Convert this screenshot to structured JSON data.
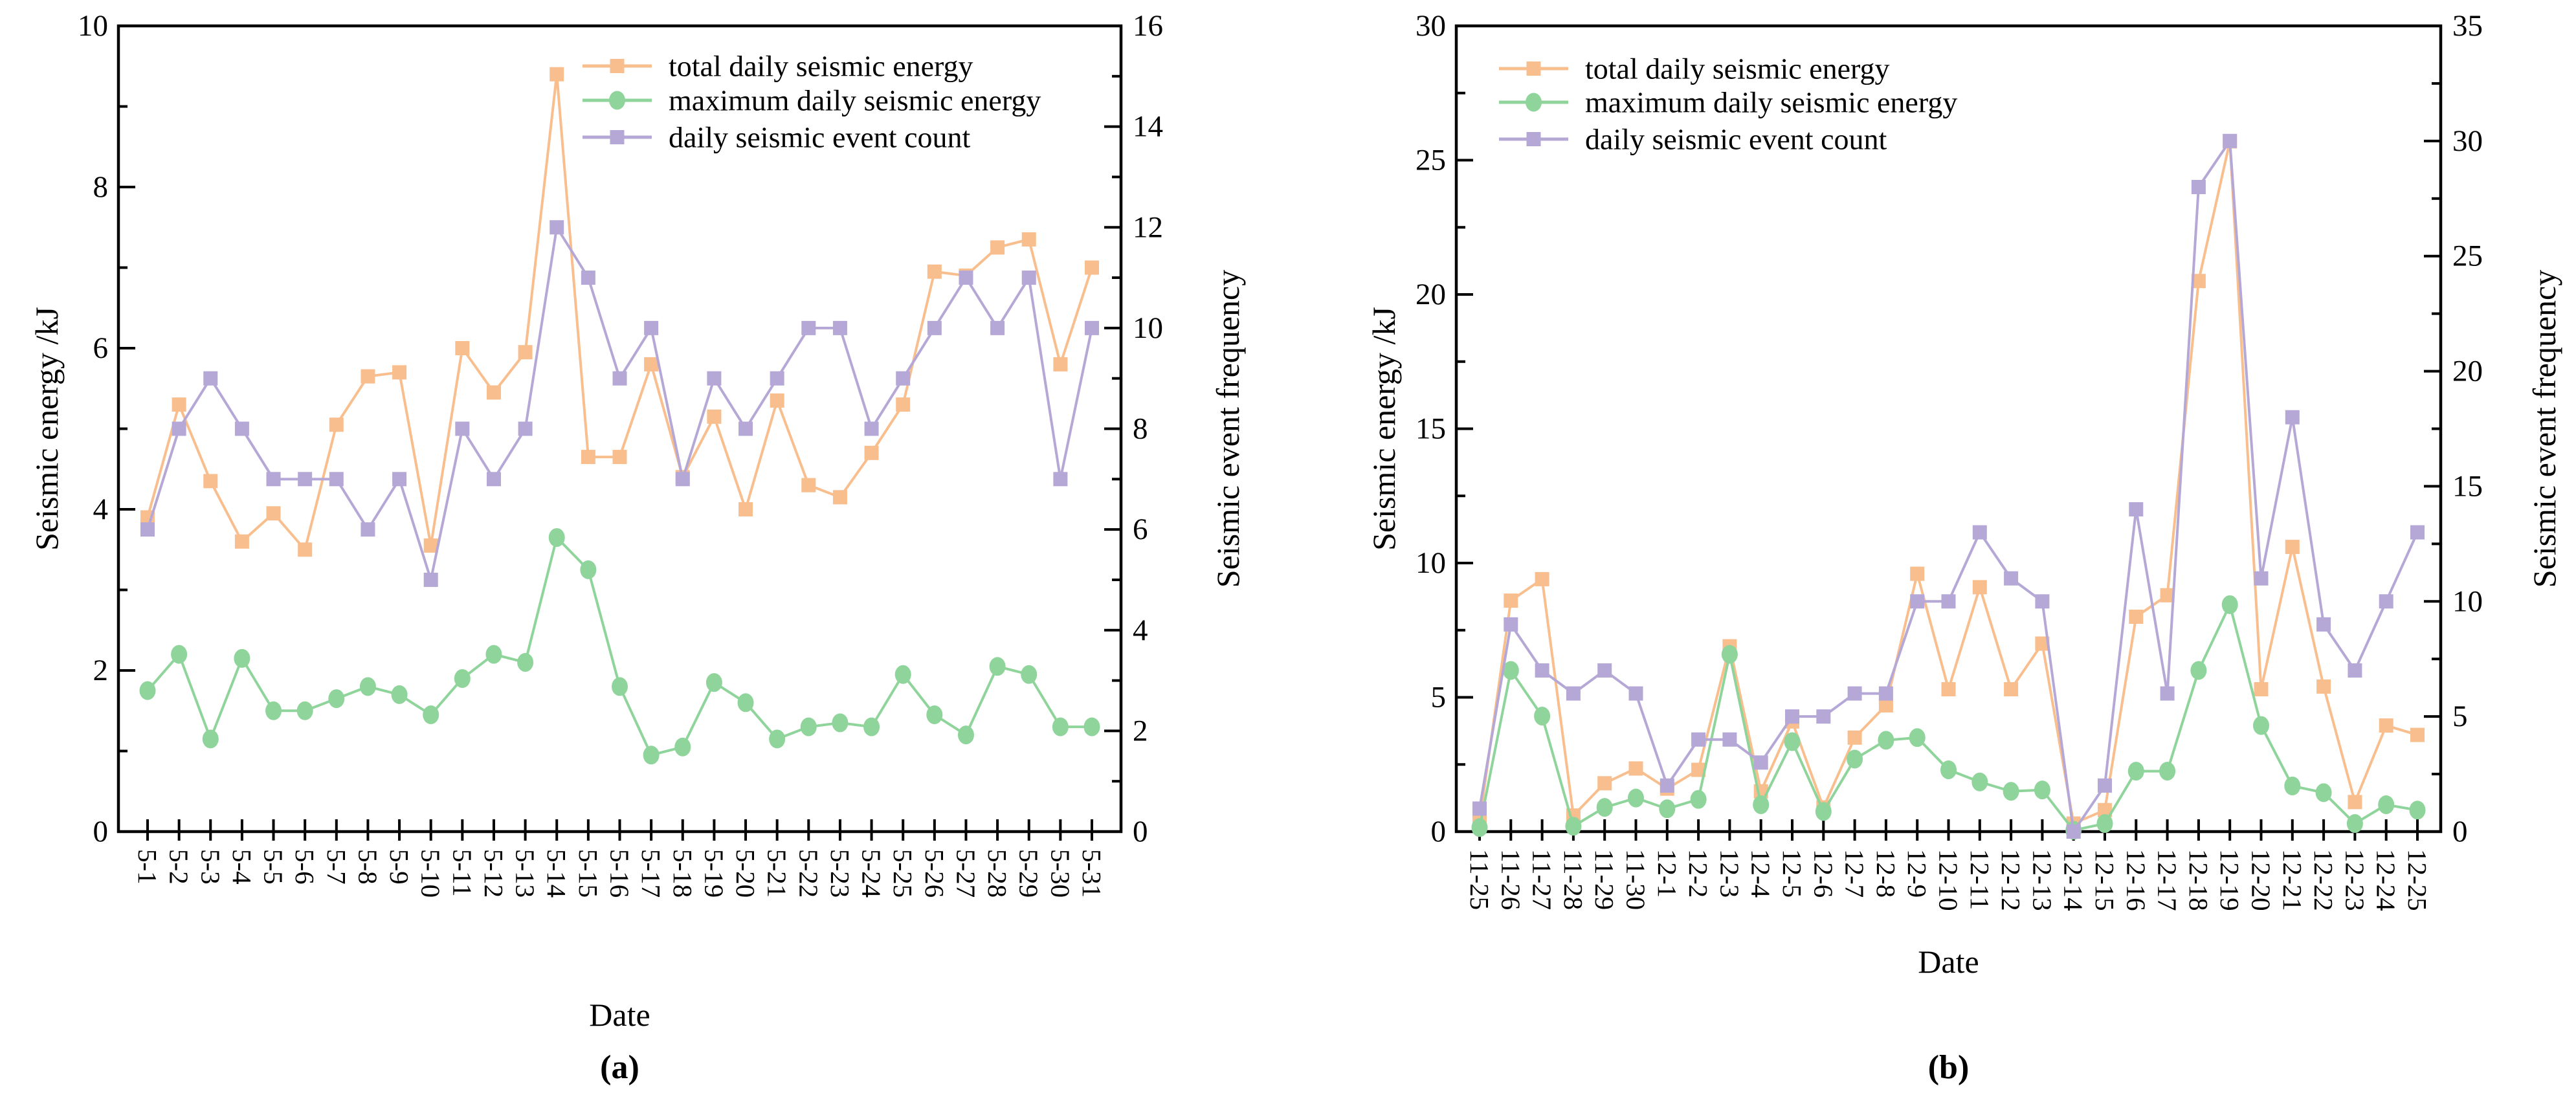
{
  "colors": {
    "total_daily_seismic_energy": "#F9BE8D",
    "maximum_daily_seismic_energy": "#8FD49B",
    "daily_seismic_event_count": "#B5A8D6",
    "axis": "#000000",
    "background": "#FFFFFF"
  },
  "legend_labels": [
    "total daily seismic energy",
    "maximum daily seismic energy",
    "daily seismic event count"
  ],
  "chart_data": [
    {
      "type": "line",
      "caption": "(a)",
      "xlabel": "Date",
      "ylabel_left": "Seismic energy /kJ",
      "ylabel_right": "Seismic event frequency",
      "ylim_left": [
        0,
        10
      ],
      "ytick_major_left": 2,
      "ytick_minor_left": 1,
      "ylim_right": [
        0,
        16
      ],
      "ytick_major_right": 2,
      "ytick_minor_right": 1,
      "grid": "off",
      "legend_position": "top-left-inside",
      "categories": [
        "5-1",
        "5-2",
        "5-3",
        "5-4",
        "5-5",
        "5-6",
        "5-7",
        "5-8",
        "5-9",
        "5-10",
        "5-11",
        "5-12",
        "5-13",
        "5-14",
        "5-15",
        "5-16",
        "5-17",
        "5-18",
        "5-19",
        "5-20",
        "5-21",
        "5-22",
        "5-23",
        "5-24",
        "5-25",
        "5-26",
        "5-27",
        "5-28",
        "5-29",
        "5-30",
        "5-31"
      ],
      "series": [
        {
          "name": "total daily seismic energy",
          "axis": "left",
          "marker": "square",
          "color_key": "total_daily_seismic_energy",
          "values": [
            3.9,
            5.3,
            4.35,
            3.6,
            3.95,
            3.5,
            5.05,
            5.65,
            5.7,
            3.55,
            6.0,
            5.45,
            5.95,
            9.4,
            4.65,
            4.65,
            5.8,
            4.4,
            5.15,
            4.0,
            5.35,
            4.3,
            4.15,
            4.7,
            5.3,
            6.95,
            6.9,
            7.25,
            7.35,
            5.8,
            7.0
          ]
        },
        {
          "name": "maximum daily seismic energy",
          "axis": "left",
          "marker": "circle",
          "color_key": "maximum_daily_seismic_energy",
          "values": [
            1.75,
            2.2,
            1.15,
            2.15,
            1.5,
            1.5,
            1.65,
            1.8,
            1.7,
            1.45,
            1.9,
            2.2,
            2.1,
            3.65,
            3.25,
            1.8,
            0.95,
            1.05,
            1.85,
            1.6,
            1.15,
            1.3,
            1.35,
            1.3,
            1.95,
            1.45,
            1.2,
            2.05,
            1.95,
            1.3,
            1.3
          ]
        },
        {
          "name": "daily seismic event count",
          "axis": "right",
          "marker": "square",
          "color_key": "daily_seismic_event_count",
          "values": [
            6,
            8,
            9,
            8,
            7,
            7,
            7,
            6,
            7,
            5,
            8,
            7,
            8,
            12,
            11,
            9,
            10,
            7,
            9,
            8,
            9,
            10,
            10,
            8,
            9,
            10,
            11,
            10,
            11,
            7,
            10
          ]
        }
      ]
    },
    {
      "type": "line",
      "caption": "(b)",
      "xlabel": "Date",
      "ylabel_left": "Seismic energy /kJ",
      "ylabel_right": "Seismic event frequency",
      "ylim_left": [
        0,
        30
      ],
      "ytick_major_left": 5,
      "ytick_minor_left": 2.5,
      "ylim_right": [
        0,
        35
      ],
      "ytick_major_right": 5,
      "ytick_minor_right": 2.5,
      "grid": "off",
      "legend_position": "top-left-inside",
      "categories": [
        "11-25",
        "11-26",
        "11-27",
        "11-28",
        "11-29",
        "11-30",
        "12-1",
        "12-2",
        "12-3",
        "12-4",
        "12-5",
        "12-6",
        "12-7",
        "12-8",
        "12-9",
        "12-10",
        "12-11",
        "12-12",
        "12-13",
        "12-14",
        "12-15",
        "12-16",
        "12-17",
        "12-18",
        "12-19",
        "12-20",
        "12-21",
        "12-22",
        "12-23",
        "12-24",
        "12-25"
      ],
      "series": [
        {
          "name": "total daily seismic energy",
          "axis": "left",
          "marker": "square",
          "color_key": "total_daily_seismic_energy",
          "values": [
            0.4,
            8.6,
            9.4,
            0.6,
            1.8,
            2.35,
            1.6,
            2.3,
            6.9,
            1.5,
            4.1,
            0.9,
            3.5,
            4.7,
            9.6,
            5.3,
            9.1,
            5.3,
            7.0,
            0.3,
            0.8,
            8.0,
            8.8,
            20.5,
            25.7,
            5.3,
            10.6,
            5.4,
            1.1,
            3.95,
            3.6
          ]
        },
        {
          "name": "maximum daily seismic energy",
          "axis": "left",
          "marker": "circle",
          "color_key": "maximum_daily_seismic_energy",
          "values": [
            0.15,
            6.0,
            4.3,
            0.2,
            0.9,
            1.25,
            0.85,
            1.2,
            6.6,
            1.0,
            3.35,
            0.75,
            2.7,
            3.4,
            3.5,
            2.3,
            1.85,
            1.5,
            1.55,
            0.05,
            0.3,
            2.25,
            2.25,
            6.0,
            8.45,
            3.95,
            1.7,
            1.45,
            0.3,
            1.0,
            0.8
          ]
        },
        {
          "name": "daily seismic event count",
          "axis": "right",
          "marker": "square",
          "color_key": "daily_seismic_event_count",
          "values": [
            1,
            9,
            7,
            6,
            7,
            6,
            2,
            4,
            4,
            3,
            5,
            5,
            6,
            6,
            10,
            10,
            13,
            11,
            10,
            0,
            2,
            14,
            6,
            28,
            30,
            11,
            18,
            9,
            7,
            10,
            13
          ]
        }
      ]
    }
  ]
}
